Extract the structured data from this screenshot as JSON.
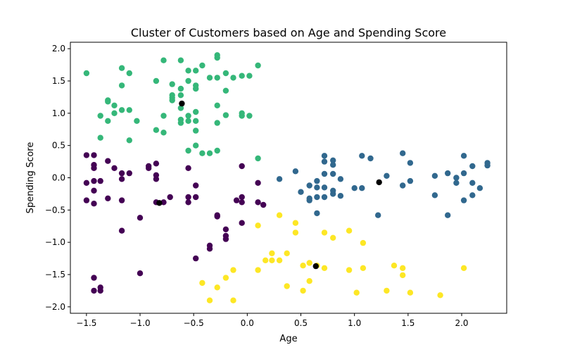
{
  "chart_data": {
    "type": "scatter",
    "title": "Cluster of Customers based on Age and Spending Score",
    "xlabel": "Age",
    "ylabel": "Spending Score",
    "xlim": [
      -1.65,
      2.42
    ],
    "ylim": [
      -2.1,
      2.1
    ],
    "xticks": [
      -1.5,
      -1.0,
      -0.5,
      0.0,
      0.5,
      1.0,
      1.5,
      2.0
    ],
    "xtick_labels": [
      "−1.5",
      "−1.0",
      "−0.5",
      "0.0",
      "0.5",
      "1.0",
      "1.5",
      "2.0"
    ],
    "yticks": [
      -2.0,
      -1.5,
      -1.0,
      -0.5,
      0.0,
      0.5,
      1.0,
      1.5,
      2.0
    ],
    "ytick_labels": [
      "−2.0",
      "−1.5",
      "−1.0",
      "−0.5",
      "0.0",
      "0.5",
      "1.0",
      "1.5",
      "2.0"
    ],
    "grid": false,
    "series": [
      {
        "color": "#440154",
        "points": [
          [
            -1.5,
            0.35
          ],
          [
            -1.43,
            0.35
          ],
          [
            -1.43,
            0.2
          ],
          [
            -1.43,
            0.15
          ],
          [
            -1.5,
            -0.08
          ],
          [
            -1.43,
            -0.05
          ],
          [
            -1.43,
            -0.2
          ],
          [
            -1.37,
            -0.05
          ],
          [
            -1.5,
            -0.35
          ],
          [
            -1.43,
            -0.4
          ],
          [
            -1.3,
            0.26
          ],
          [
            -1.24,
            0.15
          ],
          [
            -1.17,
            0.07
          ],
          [
            -1.1,
            0.07
          ],
          [
            -1.17,
            -0.02
          ],
          [
            -1.3,
            -0.32
          ],
          [
            -1.17,
            -0.35
          ],
          [
            -1.17,
            -0.82
          ],
          [
            -1.0,
            -0.62
          ],
          [
            -0.92,
            0.15
          ],
          [
            -0.92,
            0.18
          ],
          [
            -0.85,
            0.22
          ],
          [
            -0.85,
            0.04
          ],
          [
            -0.85,
            -0.02
          ],
          [
            -0.85,
            -0.38
          ],
          [
            -0.78,
            -0.38
          ],
          [
            -0.72,
            -0.3
          ],
          [
            -0.55,
            0.15
          ],
          [
            -0.55,
            -0.3
          ],
          [
            -0.55,
            -0.38
          ],
          [
            -0.48,
            -0.12
          ],
          [
            -0.48,
            -0.3
          ],
          [
            -0.48,
            -1.25
          ],
          [
            -0.35,
            -1.05
          ],
          [
            -0.35,
            -1.1
          ],
          [
            -0.28,
            -0.58
          ],
          [
            -0.28,
            -0.6
          ],
          [
            -0.2,
            -0.8
          ],
          [
            -0.2,
            -0.9
          ],
          [
            -0.2,
            -0.95
          ],
          [
            -0.1,
            -0.35
          ],
          [
            -0.05,
            -0.7
          ],
          [
            -0.05,
            -0.3
          ],
          [
            -0.05,
            -0.38
          ],
          [
            0.1,
            -0.08
          ],
          [
            0.1,
            -0.38
          ],
          [
            0.15,
            -0.42
          ],
          [
            -0.05,
            0.18
          ],
          [
            -1.43,
            -1.55
          ],
          [
            -1.43,
            -1.75
          ],
          [
            -1.37,
            -1.7
          ],
          [
            -1.37,
            -1.75
          ],
          [
            -1.0,
            -1.48
          ]
        ]
      },
      {
        "color": "#31688e",
        "points": [
          [
            0.3,
            -0.02
          ],
          [
            0.45,
            0.1
          ],
          [
            0.5,
            -0.22
          ],
          [
            0.58,
            -0.12
          ],
          [
            0.58,
            -0.32
          ],
          [
            0.58,
            -0.35
          ],
          [
            0.65,
            -0.05
          ],
          [
            0.65,
            -0.15
          ],
          [
            0.65,
            -0.3
          ],
          [
            0.65,
            -0.55
          ],
          [
            0.72,
            0.34
          ],
          [
            0.72,
            0.25
          ],
          [
            0.72,
            0.06
          ],
          [
            0.72,
            -0.15
          ],
          [
            0.72,
            -0.3
          ],
          [
            0.8,
            0.27
          ],
          [
            0.8,
            0.2
          ],
          [
            0.8,
            0.06
          ],
          [
            0.8,
            -0.2
          ],
          [
            0.8,
            -0.25
          ],
          [
            0.87,
            -0.02
          ],
          [
            0.87,
            -0.28
          ],
          [
            1.0,
            -0.16
          ],
          [
            1.07,
            0.34
          ],
          [
            1.07,
            -0.16
          ],
          [
            1.15,
            0.3
          ],
          [
            1.22,
            -0.58
          ],
          [
            1.3,
            0.03
          ],
          [
            1.45,
            0.38
          ],
          [
            1.45,
            -0.12
          ],
          [
            1.52,
            0.23
          ],
          [
            1.52,
            -0.05
          ],
          [
            1.75,
            0.03
          ],
          [
            1.75,
            -0.27
          ],
          [
            1.87,
            0.07
          ],
          [
            1.87,
            -0.58
          ],
          [
            1.95,
            0.0
          ],
          [
            1.95,
            -0.08
          ],
          [
            2.02,
            0.34
          ],
          [
            2.02,
            0.07
          ],
          [
            2.02,
            -0.35
          ],
          [
            2.1,
            0.18
          ],
          [
            2.1,
            -0.08
          ],
          [
            2.1,
            -0.27
          ],
          [
            2.17,
            -0.16
          ],
          [
            2.24,
            0.23
          ],
          [
            2.24,
            0.19
          ]
        ]
      },
      {
        "color": "#35b779",
        "points": [
          [
            -1.5,
            1.62
          ],
          [
            -1.37,
            0.96
          ],
          [
            -1.37,
            0.62
          ],
          [
            -1.3,
            1.2
          ],
          [
            -1.3,
            1.18
          ],
          [
            -1.3,
            0.88
          ],
          [
            -1.24,
            1.12
          ],
          [
            -1.24,
            1.0
          ],
          [
            -1.17,
            1.7
          ],
          [
            -1.17,
            1.43
          ],
          [
            -1.17,
            1.05
          ],
          [
            -1.1,
            1.62
          ],
          [
            -1.1,
            1.05
          ],
          [
            -1.1,
            0.58
          ],
          [
            -1.03,
            0.88
          ],
          [
            -0.85,
            1.5
          ],
          [
            -0.85,
            0.74
          ],
          [
            -0.78,
            1.82
          ],
          [
            -0.78,
            0.96
          ],
          [
            -0.78,
            0.7
          ],
          [
            -0.7,
            1.45
          ],
          [
            -0.7,
            1.28
          ],
          [
            -0.7,
            1.24
          ],
          [
            -0.7,
            1.2
          ],
          [
            -0.62,
            1.82
          ],
          [
            -0.62,
            1.38
          ],
          [
            -0.62,
            1.28
          ],
          [
            -0.62,
            1.08
          ],
          [
            -0.62,
            0.9
          ],
          [
            -0.62,
            0.85
          ],
          [
            -0.55,
            1.66
          ],
          [
            -0.55,
            1.5
          ],
          [
            -0.55,
            0.96
          ],
          [
            -0.55,
            0.88
          ],
          [
            -0.55,
            0.42
          ],
          [
            -0.48,
            1.66
          ],
          [
            -0.48,
            1.43
          ],
          [
            -0.48,
            1.38
          ],
          [
            -0.48,
            1.02
          ],
          [
            -0.48,
            0.88
          ],
          [
            -0.48,
            0.73
          ],
          [
            -0.48,
            0.5
          ],
          [
            -0.42,
            1.74
          ],
          [
            -0.42,
            0.38
          ],
          [
            -0.35,
            1.55
          ],
          [
            -0.35,
            0.38
          ],
          [
            -0.28,
            1.9
          ],
          [
            -0.28,
            1.86
          ],
          [
            -0.28,
            1.55
          ],
          [
            -0.28,
            1.12
          ],
          [
            -0.28,
            0.85
          ],
          [
            -0.28,
            0.42
          ],
          [
            -0.2,
            1.62
          ],
          [
            -0.2,
            1.35
          ],
          [
            -0.2,
            0.97
          ],
          [
            -0.13,
            1.55
          ],
          [
            -0.05,
            1.58
          ],
          [
            -0.05,
            1.0
          ],
          [
            -0.05,
            0.96
          ],
          [
            0.02,
            1.58
          ],
          [
            0.02,
            0.96
          ],
          [
            0.1,
            1.74
          ],
          [
            0.1,
            0.3
          ]
        ]
      },
      {
        "color": "#fde725",
        "points": [
          [
            -0.42,
            -1.63
          ],
          [
            -0.35,
            -1.9
          ],
          [
            -0.28,
            -1.7
          ],
          [
            -0.2,
            -1.55
          ],
          [
            -0.13,
            -1.43
          ],
          [
            -0.13,
            -1.9
          ],
          [
            0.1,
            -0.74
          ],
          [
            0.1,
            -1.43
          ],
          [
            0.17,
            -1.28
          ],
          [
            0.23,
            -1.17
          ],
          [
            0.23,
            -1.28
          ],
          [
            0.3,
            -0.58
          ],
          [
            0.3,
            -1.28
          ],
          [
            0.37,
            -1.17
          ],
          [
            0.37,
            -1.68
          ],
          [
            0.45,
            -0.7
          ],
          [
            0.45,
            -0.85
          ],
          [
            0.52,
            -1.36
          ],
          [
            0.52,
            -1.75
          ],
          [
            0.58,
            -1.32
          ],
          [
            0.58,
            -1.6
          ],
          [
            0.65,
            -1.36
          ],
          [
            0.72,
            -0.85
          ],
          [
            0.72,
            -1.4
          ],
          [
            0.8,
            -0.93
          ],
          [
            0.95,
            -0.82
          ],
          [
            0.95,
            -1.43
          ],
          [
            1.02,
            -1.78
          ],
          [
            1.08,
            -1.01
          ],
          [
            1.08,
            -1.4
          ],
          [
            1.3,
            -1.75
          ],
          [
            1.37,
            -1.36
          ],
          [
            1.45,
            -1.4
          ],
          [
            1.45,
            -1.51
          ],
          [
            1.52,
            -1.78
          ],
          [
            1.8,
            -1.82
          ],
          [
            2.02,
            -1.4
          ]
        ]
      },
      {
        "color": "#000000",
        "points": [
          [
            -0.61,
            1.15
          ],
          [
            -0.82,
            -0.39
          ],
          [
            1.23,
            -0.07
          ],
          [
            0.64,
            -1.37
          ]
        ]
      }
    ]
  }
}
